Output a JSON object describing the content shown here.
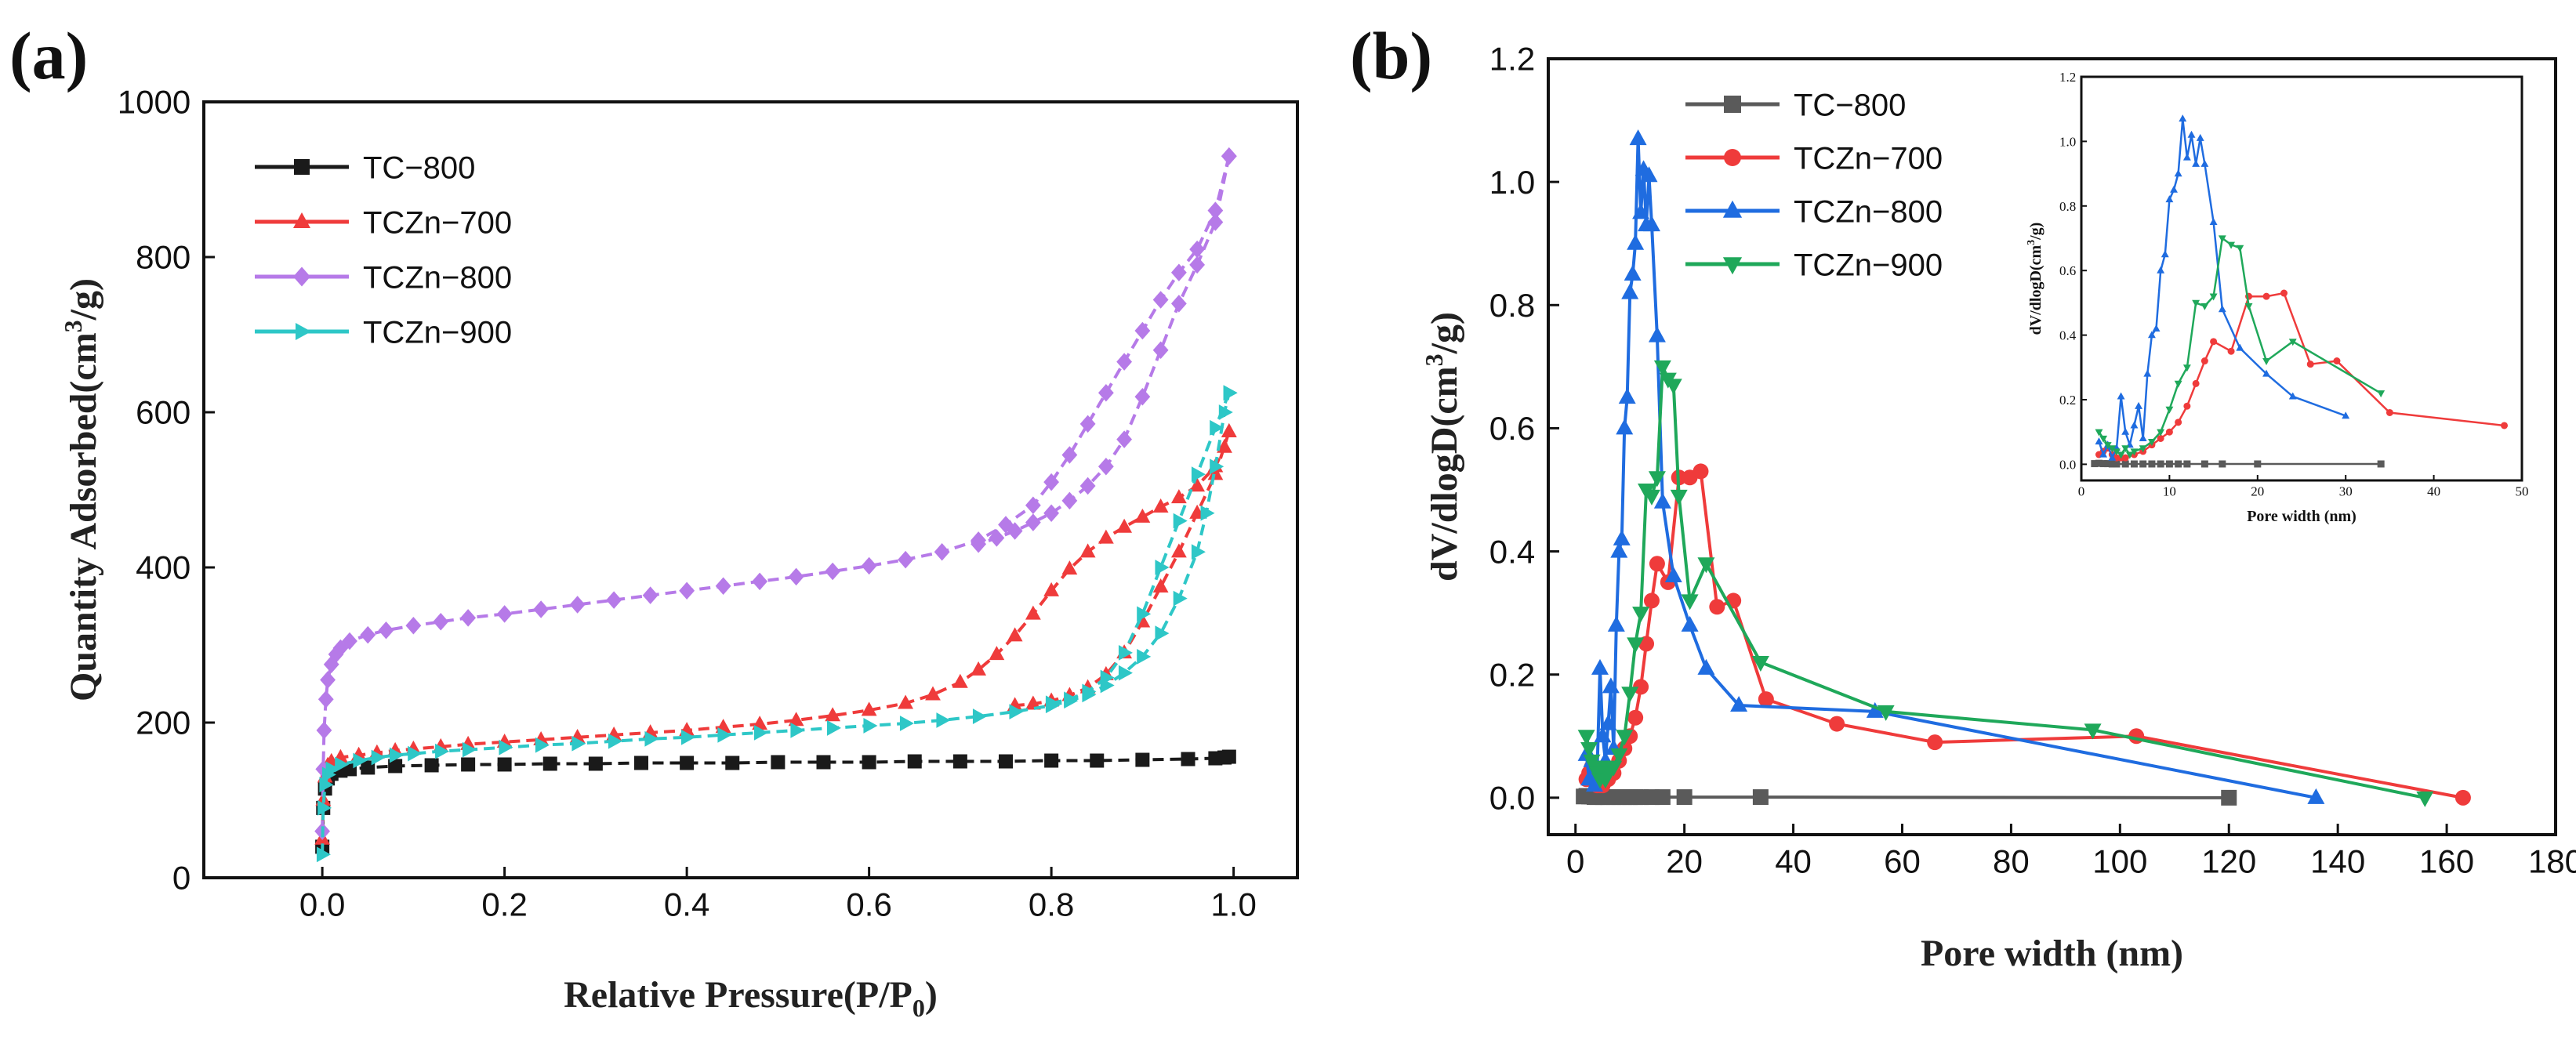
{
  "figure": {
    "panel_labels": [
      "(a)",
      "(b)"
    ],
    "series_colors": {
      "TC-800": "#1a1a1a",
      "TC-800-b": "#5a5a5a",
      "TCZn-700": "#ef3b3b",
      "TCZn-800": "#b67ae8",
      "TCZn-800-b": "#1f6ce0",
      "TCZn-900": "#2ec7c7",
      "TCZn-900-b": "#1fa85a"
    }
  },
  "chart_data": [
    {
      "id": "a",
      "type": "line",
      "title": "",
      "xlabel": "Relative Pressure(P/P",
      "xlabel_sub": "0",
      "xlabel_tail": ")",
      "ylabel": "Quantity Adsorbed(cm",
      "ylabel_sup": "3",
      "ylabel_tail": "/g)",
      "xlim": [
        -0.13,
        1.07
      ],
      "ylim": [
        0,
        1000
      ],
      "xticks": [
        0.0,
        0.2,
        0.4,
        0.6,
        0.8,
        1.0
      ],
      "xtick_labels": [
        "0.0",
        "0.2",
        "0.4",
        "0.6",
        "0.8",
        "1.0"
      ],
      "yticks": [
        0,
        200,
        400,
        600,
        800,
        1000
      ],
      "ytick_labels": [
        "0",
        "200",
        "400",
        "600",
        "800",
        "1000"
      ],
      "legend_position": "upper-left",
      "series": [
        {
          "name": "TC−800",
          "marker": "square",
          "color": "#1a1a1a",
          "x": [
            0.0,
            0.001,
            0.003,
            0.006,
            0.01,
            0.02,
            0.03,
            0.05,
            0.08,
            0.12,
            0.16,
            0.2,
            0.25,
            0.3,
            0.35,
            0.4,
            0.45,
            0.5,
            0.55,
            0.6,
            0.65,
            0.7,
            0.75,
            0.8,
            0.85,
            0.9,
            0.95,
            0.98,
            0.99,
            0.995
          ],
          "y": [
            40,
            90,
            115,
            128,
            134,
            138,
            140,
            142,
            144,
            145,
            146,
            146,
            147,
            147,
            148,
            148,
            148,
            149,
            149,
            149,
            150,
            150,
            150,
            151,
            151,
            152,
            153,
            154,
            155,
            156
          ]
        },
        {
          "name": "TCZn−700",
          "marker": "triangle-up",
          "color": "#ef3b3b",
          "x": [
            0.0,
            0.001,
            0.003,
            0.006,
            0.01,
            0.02,
            0.04,
            0.06,
            0.08,
            0.1,
            0.13,
            0.16,
            0.2,
            0.24,
            0.28,
            0.32,
            0.36,
            0.4,
            0.44,
            0.48,
            0.52,
            0.56,
            0.6,
            0.64,
            0.67,
            0.7,
            0.72,
            0.74,
            0.76,
            0.78,
            0.8,
            0.82,
            0.84,
            0.86,
            0.88,
            0.9,
            0.92,
            0.94,
            0.96,
            0.98,
            0.99,
            0.995
          ],
          "y": [
            50,
            100,
            130,
            145,
            150,
            155,
            158,
            161,
            164,
            166,
            169,
            172,
            175,
            178,
            181,
            184,
            187,
            190,
            194,
            198,
            203,
            209,
            216,
            225,
            236,
            252,
            268,
            288,
            312,
            340,
            370,
            398,
            420,
            438,
            452,
            465,
            478,
            490,
            505,
            530,
            555,
            575
          ]
        },
        {
          "name": "TCZn−700 desorption",
          "marker": "triangle-up",
          "color": "#ef3b3b",
          "legend": false,
          "x": [
            0.995,
            0.98,
            0.96,
            0.94,
            0.92,
            0.9,
            0.88,
            0.86,
            0.84,
            0.82,
            0.8,
            0.78,
            0.76
          ],
          "y": [
            575,
            520,
            470,
            420,
            375,
            330,
            290,
            262,
            245,
            235,
            228,
            224,
            222
          ]
        },
        {
          "name": "TCZn−800",
          "marker": "diamond",
          "color": "#b67ae8",
          "x": [
            0.0,
            0.001,
            0.002,
            0.004,
            0.006,
            0.01,
            0.015,
            0.02,
            0.03,
            0.05,
            0.07,
            0.1,
            0.13,
            0.16,
            0.2,
            0.24,
            0.28,
            0.32,
            0.36,
            0.4,
            0.44,
            0.48,
            0.52,
            0.56,
            0.6,
            0.64,
            0.68,
            0.72,
            0.75,
            0.78,
            0.8,
            0.82,
            0.84,
            0.86,
            0.88,
            0.9,
            0.92,
            0.94,
            0.96,
            0.98,
            0.995
          ],
          "y": [
            60,
            140,
            190,
            230,
            255,
            275,
            288,
            296,
            305,
            313,
            319,
            325,
            330,
            335,
            340,
            346,
            352,
            358,
            364,
            370,
            376,
            382,
            388,
            395,
            402,
            410,
            420,
            435,
            455,
            480,
            510,
            545,
            585,
            625,
            665,
            705,
            745,
            780,
            810,
            860,
            930
          ]
        },
        {
          "name": "TCZn−800 desorption",
          "marker": "diamond",
          "color": "#b67ae8",
          "legend": false,
          "x": [
            0.995,
            0.98,
            0.96,
            0.94,
            0.92,
            0.9,
            0.88,
            0.86,
            0.84,
            0.82,
            0.8,
            0.78,
            0.76,
            0.74,
            0.72
          ],
          "y": [
            930,
            845,
            790,
            740,
            680,
            620,
            565,
            530,
            505,
            486,
            470,
            458,
            447,
            438,
            430
          ]
        },
        {
          "name": "TCZn−900",
          "marker": "triangle-right",
          "color": "#2ec7c7",
          "x": [
            0.0,
            0.001,
            0.003,
            0.006,
            0.01,
            0.02,
            0.04,
            0.06,
            0.08,
            0.1,
            0.13,
            0.16,
            0.2,
            0.24,
            0.28,
            0.32,
            0.36,
            0.4,
            0.44,
            0.48,
            0.52,
            0.56,
            0.6,
            0.64,
            0.68,
            0.72,
            0.76,
            0.8,
            0.82,
            0.84,
            0.86,
            0.88,
            0.9,
            0.92,
            0.94,
            0.96,
            0.97,
            0.98,
            0.99,
            0.995
          ],
          "y": [
            30,
            90,
            120,
            133,
            140,
            146,
            151,
            155,
            158,
            160,
            163,
            165,
            168,
            171,
            173,
            176,
            179,
            181,
            184,
            187,
            190,
            193,
            196,
            199,
            203,
            208,
            214,
            222,
            228,
            236,
            248,
            264,
            285,
            315,
            360,
            420,
            470,
            530,
            600,
            625
          ]
        },
        {
          "name": "TCZn−900 desorption",
          "marker": "triangle-right",
          "color": "#2ec7c7",
          "legend": false,
          "x": [
            0.995,
            0.98,
            0.96,
            0.94,
            0.92,
            0.9,
            0.88,
            0.86,
            0.84,
            0.82,
            0.8
          ],
          "y": [
            625,
            580,
            520,
            460,
            400,
            340,
            290,
            258,
            240,
            230,
            225
          ]
        }
      ]
    },
    {
      "id": "b",
      "type": "line",
      "title": "",
      "xlabel": "Pore width (nm)",
      "ylabel": "dV/dlogD(cm",
      "ylabel_sup": "3",
      "ylabel_tail": "/g)",
      "xlim": [
        -5,
        180
      ],
      "ylim": [
        -0.06,
        1.2
      ],
      "xticks": [
        0,
        20,
        40,
        60,
        80,
        100,
        120,
        140,
        160,
        180
      ],
      "xtick_labels": [
        "0",
        "20",
        "40",
        "60",
        "80",
        "100",
        "120",
        "140",
        "160",
        "180"
      ],
      "yticks": [
        0.0,
        0.2,
        0.4,
        0.6,
        0.8,
        1.0,
        1.2
      ],
      "ytick_labels": [
        "0.0",
        "0.2",
        "0.4",
        "0.6",
        "0.8",
        "1.0",
        "1.2"
      ],
      "legend_position": "upper-left",
      "series": [
        {
          "name": "TC−800",
          "marker": "square",
          "color": "#5a5a5a",
          "x": [
            1.5,
            2,
            2.5,
            3,
            3.5,
            4,
            5,
            6,
            7,
            8,
            9,
            10,
            11,
            12,
            14,
            16,
            20,
            34,
            120
          ],
          "y": [
            0.002,
            0.003,
            0.002,
            0.002,
            0.001,
            0.001,
            0.001,
            0.001,
            0.001,
            0.001,
            0.001,
            0.001,
            0.001,
            0.001,
            0.001,
            0.001,
            0.001,
            0.001,
            0.0
          ]
        },
        {
          "name": "TCZn−700",
          "marker": "circle",
          "color": "#ef3b3b",
          "x": [
            2,
            2.5,
            3,
            3.5,
            4,
            4.5,
            5,
            6,
            7,
            8,
            9,
            10,
            11,
            12,
            13,
            14,
            15,
            17,
            19,
            21,
            23,
            26,
            29,
            35,
            48,
            66,
            103,
            163
          ],
          "y": [
            0.03,
            0.04,
            0.05,
            0.03,
            0.02,
            0.02,
            0.02,
            0.03,
            0.04,
            0.06,
            0.08,
            0.1,
            0.13,
            0.18,
            0.25,
            0.32,
            0.38,
            0.35,
            0.52,
            0.52,
            0.53,
            0.31,
            0.32,
            0.16,
            0.12,
            0.09,
            0.1,
            0.0
          ]
        },
        {
          "name": "TCZn−800",
          "marker": "triangle-up",
          "color": "#1f6ce0",
          "x": [
            2,
            2.5,
            3,
            3.5,
            4,
            4.5,
            5,
            5.5,
            6,
            6.5,
            7,
            7.5,
            8,
            8.5,
            9,
            9.5,
            10,
            10.5,
            11,
            11.5,
            12,
            12.5,
            13,
            13.5,
            14,
            15,
            16,
            18,
            21,
            24,
            30,
            55,
            136
          ],
          "y": [
            0.07,
            0.03,
            0.06,
            0.02,
            0.05,
            0.21,
            0.1,
            0.06,
            0.12,
            0.18,
            0.08,
            0.28,
            0.4,
            0.42,
            0.6,
            0.65,
            0.82,
            0.85,
            0.9,
            1.07,
            0.95,
            1.02,
            0.93,
            1.01,
            0.93,
            0.75,
            0.48,
            0.36,
            0.28,
            0.21,
            0.15,
            0.14,
            0.0
          ]
        },
        {
          "name": "TCZn−900",
          "marker": "triangle-down",
          "color": "#1fa85a",
          "x": [
            2,
            2.5,
            3,
            3.5,
            4,
            4.5,
            5,
            5.5,
            6,
            7,
            8,
            9,
            10,
            11,
            12,
            13,
            14,
            15,
            16,
            17,
            18,
            19,
            21,
            24,
            34,
            57,
            95,
            156
          ],
          "y": [
            0.1,
            0.08,
            0.06,
            0.05,
            0.04,
            0.03,
            0.05,
            0.03,
            0.04,
            0.05,
            0.07,
            0.1,
            0.17,
            0.25,
            0.3,
            0.5,
            0.49,
            0.52,
            0.7,
            0.68,
            0.67,
            0.49,
            0.32,
            0.38,
            0.22,
            0.14,
            0.11,
            0.0
          ]
        }
      ],
      "inset": {
        "xlabel": "Pore width (nm)",
        "ylabel": "dV/dlogD(cm",
        "ylabel_sup": "3",
        "ylabel_tail": "/g)",
        "xlim": [
          0,
          50
        ],
        "ylim": [
          -0.05,
          1.2
        ],
        "xticks": [
          0,
          10,
          20,
          30,
          40,
          50
        ],
        "xtick_labels": [
          "0",
          "10",
          "20",
          "30",
          "40",
          "50"
        ],
        "yticks": [
          0.0,
          0.2,
          0.4,
          0.6,
          0.8,
          1.0,
          1.2
        ],
        "ytick_labels": [
          "0.0",
          "0.2",
          "0.4",
          "0.6",
          "0.8",
          "1.0",
          "1.2"
        ]
      }
    }
  ]
}
